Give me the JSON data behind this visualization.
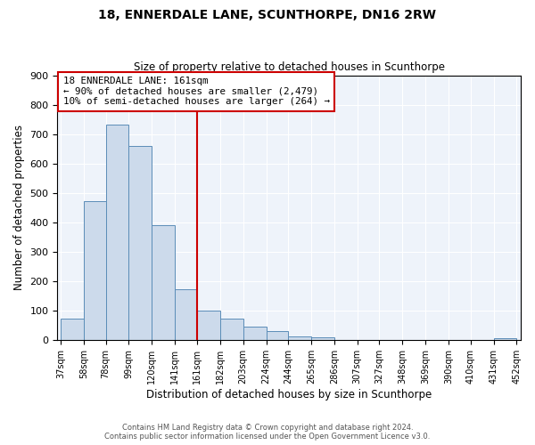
{
  "title": "18, ENNERDALE LANE, SCUNTHORPE, DN16 2RW",
  "subtitle": "Size of property relative to detached houses in Scunthorpe",
  "xlabel": "Distribution of detached houses by size in Scunthorpe",
  "ylabel": "Number of detached properties",
  "footer_line1": "Contains HM Land Registry data © Crown copyright and database right 2024.",
  "footer_line2": "Contains public sector information licensed under the Open Government Licence v3.0.",
  "bins": [
    37,
    58,
    78,
    99,
    120,
    141,
    161,
    182,
    203,
    224,
    244,
    265,
    286,
    307,
    327,
    348,
    369,
    390,
    410,
    431,
    452
  ],
  "heights": [
    75,
    473,
    733,
    660,
    390,
    172,
    100,
    75,
    45,
    30,
    13,
    10,
    0,
    0,
    0,
    0,
    0,
    0,
    0,
    8
  ],
  "bar_color": "#ccdaeb",
  "bar_edge_color": "#5b8db8",
  "vline_x": 161,
  "vline_color": "#cc0000",
  "ylim": [
    0,
    900
  ],
  "yticks": [
    0,
    100,
    200,
    300,
    400,
    500,
    600,
    700,
    800,
    900
  ],
  "annotation_title": "18 ENNERDALE LANE: 161sqm",
  "annotation_line1": "← 90% of detached houses are smaller (2,479)",
  "annotation_line2": "10% of semi-detached houses are larger (264) →",
  "annotation_box_edge_color": "#cc0000",
  "bg_color": "#eef3fa"
}
